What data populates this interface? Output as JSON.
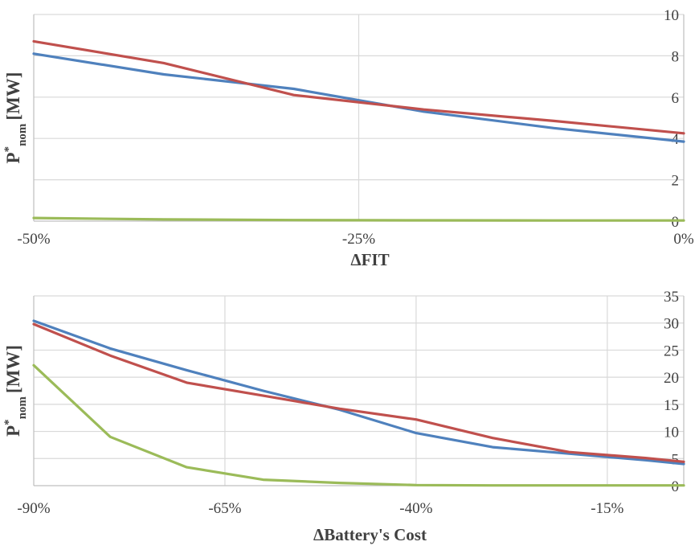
{
  "chart_data": [
    {
      "type": "line",
      "xlabel": "ΔFIT",
      "ylabel_main": "P",
      "ylabel_sup": "*",
      "ylabel_sub": "nom",
      "ylabel_unit": "[MW]",
      "xlim": [
        -50,
        0
      ],
      "ylim": [
        0,
        10
      ],
      "x_ticks": [
        {
          "value": -50,
          "label": "-50%"
        },
        {
          "value": -25,
          "label": "-25%"
        },
        {
          "value": 0,
          "label": "0%"
        }
      ],
      "y_ticks": [
        {
          "value": 0,
          "label": "0"
        },
        {
          "value": 2,
          "label": "2"
        },
        {
          "value": 4,
          "label": "4"
        },
        {
          "value": 6,
          "label": "6"
        },
        {
          "value": 8,
          "label": "8"
        },
        {
          "value": 10,
          "label": "10"
        }
      ],
      "grid": true,
      "series": [
        {
          "color": "#4f81bd",
          "x": [
            -50,
            -40,
            -30,
            -20,
            -10,
            0
          ],
          "y": [
            8.1,
            7.1,
            6.4,
            5.3,
            4.5,
            3.85
          ]
        },
        {
          "color": "#c0504d",
          "x": [
            -50,
            -40,
            -30,
            -20,
            -10,
            0
          ],
          "y": [
            8.7,
            7.65,
            6.1,
            5.4,
            4.85,
            4.25
          ]
        },
        {
          "color": "#9bbb59",
          "x": [
            -50,
            -40,
            -30,
            -20,
            -10,
            0
          ],
          "y": [
            0.15,
            0.08,
            0.05,
            0.04,
            0.03,
            0.03
          ]
        }
      ]
    },
    {
      "type": "line",
      "xlabel": "ΔBattery's Cost",
      "ylabel_main": "P",
      "ylabel_sup": "*",
      "ylabel_sub": "nom",
      "ylabel_unit": "[MW]",
      "xlim": [
        -90,
        -5
      ],
      "ylim": [
        0,
        35
      ],
      "x_ticks": [
        {
          "value": -90,
          "label": "-90%"
        },
        {
          "value": -65,
          "label": "-65%"
        },
        {
          "value": -40,
          "label": "-40%"
        },
        {
          "value": -15,
          "label": "-15%"
        }
      ],
      "y_ticks": [
        {
          "value": 0,
          "label": "0"
        },
        {
          "value": 5,
          "label": "5"
        },
        {
          "value": 10,
          "label": "10"
        },
        {
          "value": 15,
          "label": "15"
        },
        {
          "value": 20,
          "label": "20"
        },
        {
          "value": 25,
          "label": "25"
        },
        {
          "value": 30,
          "label": "30"
        },
        {
          "value": 35,
          "label": "35"
        }
      ],
      "grid": true,
      "series": [
        {
          "color": "#4f81bd",
          "x": [
            -90,
            -80,
            -70,
            -60,
            -50,
            -40,
            -30,
            -20,
            -10,
            -5
          ],
          "y": [
            30.4,
            25.3,
            21.3,
            17.5,
            14.0,
            9.7,
            7.1,
            5.9,
            4.7,
            4.0
          ]
        },
        {
          "color": "#c0504d",
          "x": [
            -90,
            -80,
            -70,
            -60,
            -50,
            -40,
            -30,
            -20,
            -10,
            -5
          ],
          "y": [
            29.8,
            24.0,
            19.0,
            16.6,
            14.2,
            12.2,
            8.8,
            6.2,
            5.1,
            4.4
          ]
        },
        {
          "color": "#9bbb59",
          "x": [
            -90,
            -80,
            -70,
            -60,
            -50,
            -40,
            -30,
            -20,
            -10,
            -5
          ],
          "y": [
            22.2,
            9.0,
            3.4,
            1.1,
            0.5,
            0.1,
            0.05,
            0.05,
            0.05,
            0.05
          ]
        }
      ]
    }
  ]
}
